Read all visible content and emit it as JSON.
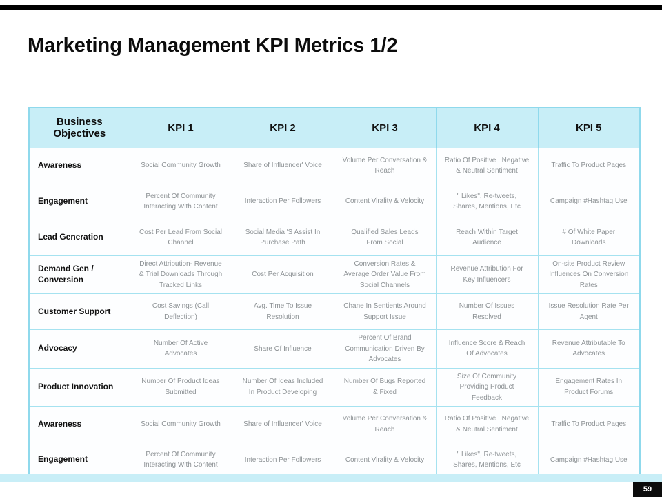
{
  "slide": {
    "title": "Marketing Management KPI Metrics 1/2",
    "page_number": "59",
    "accent_color": "#c8eef7"
  },
  "table": {
    "headers": [
      "Business Objectives",
      "KPI 1",
      "KPI 2",
      "KPI 3",
      "KPI 4",
      "KPI 5"
    ],
    "rows": [
      {
        "objective": "Awareness",
        "kpis": [
          "Social Community Growth",
          "Share of Influencer' Voice",
          "Volume Per Conversation & Reach",
          "Ratio Of Positive , Negative & Neutral Sentiment",
          "Traffic To Product Pages"
        ]
      },
      {
        "objective": "Engagement",
        "kpis": [
          "Percent Of Community Interacting With Content",
          "Interaction Per Followers",
          "Content Virality & Velocity",
          "\" Likes\", Re-tweets, Shares, Mentions, Etc",
          "Campaign #Hashtag Use"
        ]
      },
      {
        "objective": "Lead Generation",
        "kpis": [
          "Cost Per Lead From Social Channel",
          "Social Media 'S Assist In Purchase Path",
          "Qualified Sales Leads From Social",
          "Reach Within Target Audience",
          "# Of White Paper Downloads"
        ]
      },
      {
        "objective": "Demand Gen / Conversion",
        "kpis": [
          "Direct Attribution- Revenue & Trial Downloads Through Tracked Links",
          "Cost Per Acquisition",
          "Conversion Rates & Average Order Value From Social Channels",
          "Revenue Attribution For Key Influencers",
          "On-site Product Review Influences On Conversion Rates"
        ]
      },
      {
        "objective": "Customer Support",
        "kpis": [
          "Cost Savings (Call Deflection)",
          "Avg. Time To Issue Resolution",
          "Chane In Sentients Around Support Issue",
          "Number Of Issues Resolved",
          "Issue Resolution Rate Per Agent"
        ]
      },
      {
        "objective": "Advocacy",
        "kpis": [
          "Number Of Active Advocates",
          "Share Of Influence",
          "Percent Of Brand Communication Driven By Advocates",
          "Influence Score & Reach Of Advocates",
          "Revenue Attributable To Advocates"
        ]
      },
      {
        "objective": "Product Innovation",
        "kpis": [
          "Number Of Product Ideas Submitted",
          "Number Of Ideas Included In Product Developing",
          "Number Of Bugs Reported & Fixed",
          "Size Of Community Providing Product Feedback",
          "Engagement Rates In Product Forums"
        ]
      },
      {
        "objective": "Awareness",
        "kpis": [
          "Social Community Growth",
          "Share of Influencer' Voice",
          "Volume Per Conversation & Reach",
          "Ratio Of Positive , Negative & Neutral Sentiment",
          "Traffic To Product Pages"
        ]
      },
      {
        "objective": "Engagement",
        "kpis": [
          "Percent Of Community Interacting With Content",
          "Interaction Per Followers",
          "Content Virality & Velocity",
          "\" Likes\", Re-tweets, Shares, Mentions, Etc",
          "Campaign #Hashtag Use"
        ]
      }
    ]
  }
}
